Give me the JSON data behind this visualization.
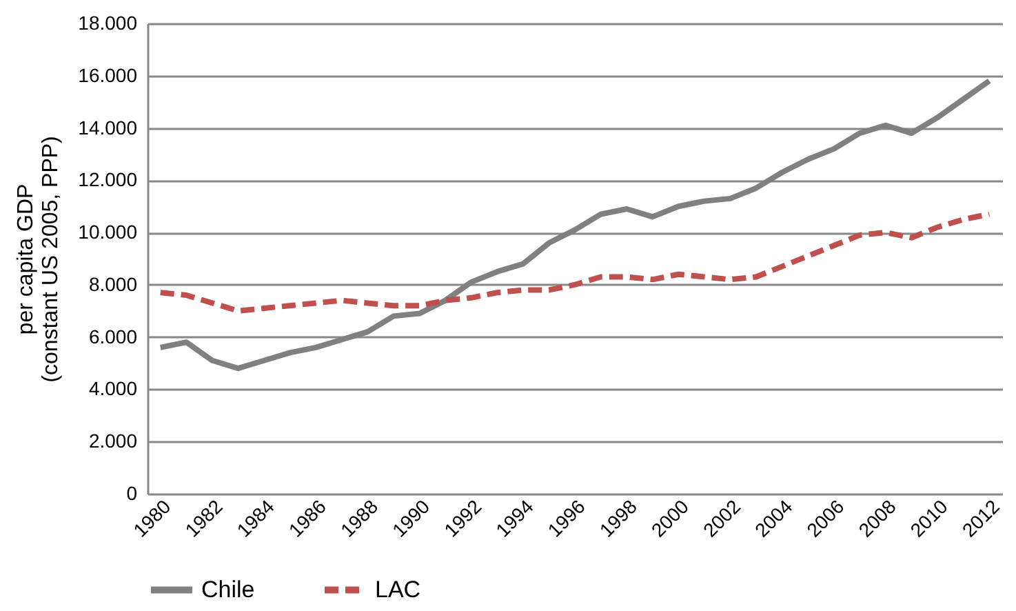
{
  "chart_data": {
    "type": "line",
    "ylabel": "per capita GDP\n(constant US 2005, PPP)",
    "categories": [
      "1980",
      null,
      "1982",
      null,
      "1984",
      null,
      "1986",
      null,
      "1988",
      null,
      "1990",
      null,
      "1992",
      null,
      "1994",
      null,
      "1996",
      null,
      "1998",
      null,
      "2000",
      null,
      "2002",
      null,
      "2004",
      null,
      "2006",
      null,
      "2008",
      null,
      "2010",
      null,
      "2012"
    ],
    "series": [
      {
        "name": "Chile",
        "color": "#808080",
        "line_style": "solid",
        "values": [
          5600,
          5800,
          5100,
          4800,
          5100,
          5400,
          5600,
          5900,
          6200,
          6800,
          6900,
          7400,
          8100,
          8500,
          8800,
          9600,
          10100,
          10700,
          10900,
          10600,
          11000,
          11200,
          11300,
          11700,
          12300,
          12800,
          13200,
          13800,
          14100,
          13800,
          14400,
          15100,
          15800
        ]
      },
      {
        "name": "LAC",
        "color": "#c0504d",
        "line_style": "dashed",
        "values": [
          7700,
          7600,
          7300,
          7000,
          7100,
          7200,
          7300,
          7400,
          7300,
          7200,
          7200,
          7400,
          7500,
          7700,
          7800,
          7800,
          8000,
          8300,
          8300,
          8200,
          8400,
          8300,
          8200,
          8300,
          8700,
          9100,
          9500,
          9900,
          10000,
          9800,
          10200,
          10500,
          10700
        ]
      }
    ],
    "ylim": [
      0,
      18000
    ],
    "yticks": [
      0,
      {
        "value": 2000,
        "label": "2.000"
      },
      {
        "value": 4000,
        "label": "4.000"
      },
      {
        "value": 6000,
        "label": "6.000"
      },
      {
        "value": 8000,
        "label": "8.000"
      },
      {
        "value": 10000,
        "label": "10.000"
      },
      {
        "value": 12000,
        "label": "12.000"
      },
      {
        "value": 14000,
        "label": "14.000"
      },
      {
        "value": 16000,
        "label": "16.000"
      },
      {
        "value": 18000,
        "label": "18.000"
      }
    ],
    "grid": "y",
    "legend": "bottom"
  }
}
